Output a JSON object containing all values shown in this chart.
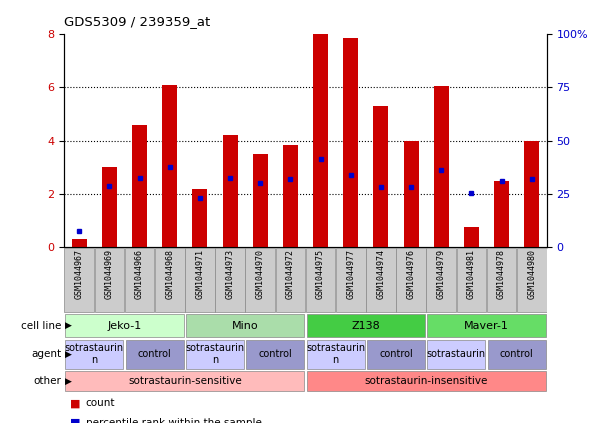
{
  "title": "GDS5309 / 239359_at",
  "samples": [
    "GSM1044967",
    "GSM1044969",
    "GSM1044966",
    "GSM1044968",
    "GSM1044971",
    "GSM1044973",
    "GSM1044970",
    "GSM1044972",
    "GSM1044975",
    "GSM1044977",
    "GSM1044974",
    "GSM1044976",
    "GSM1044979",
    "GSM1044981",
    "GSM1044978",
    "GSM1044980"
  ],
  "counts": [
    0.3,
    3.0,
    4.6,
    6.1,
    2.2,
    4.2,
    3.5,
    3.85,
    8.0,
    7.85,
    5.3,
    4.0,
    6.05,
    0.75,
    2.5,
    4.0
  ],
  "percentile_ranks": [
    0.6,
    2.3,
    2.6,
    3.0,
    1.85,
    2.6,
    2.4,
    2.55,
    3.3,
    2.7,
    2.25,
    2.25,
    2.9,
    2.05,
    2.5,
    2.55
  ],
  "bar_color": "#cc0000",
  "dot_color": "#0000cc",
  "ylim_left": [
    0,
    8
  ],
  "yticks_left": [
    0,
    2,
    4,
    6,
    8
  ],
  "ytick_labels_right": [
    "0",
    "25",
    "50",
    "75",
    "100%"
  ],
  "cell_lines": [
    {
      "label": "Jeko-1",
      "start": 0,
      "end": 4,
      "color": "#ccffcc"
    },
    {
      "label": "Mino",
      "start": 4,
      "end": 8,
      "color": "#aaddaa"
    },
    {
      "label": "Z138",
      "start": 8,
      "end": 12,
      "color": "#44cc44"
    },
    {
      "label": "Maver-1",
      "start": 12,
      "end": 16,
      "color": "#66dd66"
    }
  ],
  "agents": [
    {
      "label": "sotrastaurin\nn",
      "start": 0,
      "end": 2,
      "color": "#ccccff"
    },
    {
      "label": "control",
      "start": 2,
      "end": 4,
      "color": "#9999cc"
    },
    {
      "label": "sotrastaurin\nn",
      "start": 4,
      "end": 6,
      "color": "#ccccff"
    },
    {
      "label": "control",
      "start": 6,
      "end": 8,
      "color": "#9999cc"
    },
    {
      "label": "sotrastaurin\nn",
      "start": 8,
      "end": 10,
      "color": "#ccccff"
    },
    {
      "label": "control",
      "start": 10,
      "end": 12,
      "color": "#9999cc"
    },
    {
      "label": "sotrastaurin",
      "start": 12,
      "end": 14,
      "color": "#ccccff"
    },
    {
      "label": "control",
      "start": 14,
      "end": 16,
      "color": "#9999cc"
    }
  ],
  "other": [
    {
      "label": "sotrastaurin-sensitive",
      "start": 0,
      "end": 8,
      "color": "#ffbbbb"
    },
    {
      "label": "sotrastaurin-insensitive",
      "start": 8,
      "end": 16,
      "color": "#ff8888"
    }
  ],
  "row_labels": [
    "cell line",
    "agent",
    "other"
  ],
  "legend_items": [
    {
      "label": "count",
      "color": "#cc0000"
    },
    {
      "label": "percentile rank within the sample",
      "color": "#0000cc"
    }
  ],
  "bar_width": 0.5
}
